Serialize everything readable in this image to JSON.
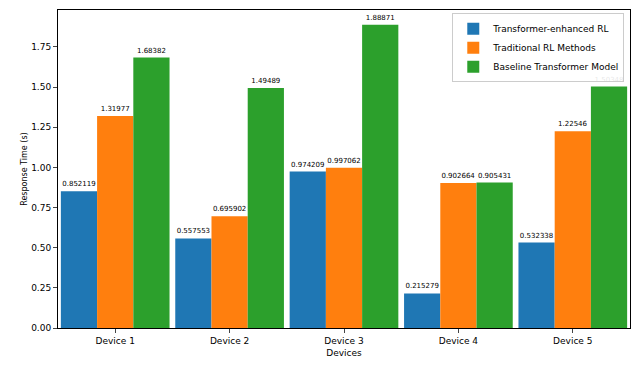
{
  "chart_data": {
    "type": "bar",
    "x_label": "Devices",
    "y_label": "Response Time (s)",
    "categories": [
      "Device 1",
      "Device 2",
      "Device 3",
      "Device 4",
      "Device 5"
    ],
    "series": [
      {
        "name": "Transformer-enhanced RL",
        "color": "#1f77b4",
        "values": [
          0.852119,
          0.557553,
          0.974209,
          0.215279,
          0.532338
        ]
      },
      {
        "name": "Traditional RL Methods",
        "color": "#ff7f0e",
        "values": [
          1.31977,
          0.695902,
          0.997062,
          0.902664,
          1.22546
        ]
      },
      {
        "name": "Baseline Transformer Model",
        "color": "#2ca02c",
        "values": [
          1.68382,
          1.49489,
          1.88871,
          0.905431,
          1.50348
        ]
      }
    ],
    "ylim": [
      0,
      1.98
    ],
    "yticks": [
      {
        "value": 0,
        "label": "0.00"
      },
      {
        "value": 0.25,
        "label": "0.25"
      },
      {
        "value": 0.5,
        "label": "0.50"
      },
      {
        "value": 0.75,
        "label": "0.75"
      },
      {
        "value": 1,
        "label": "1.00"
      },
      {
        "value": 1.25,
        "label": "1.25"
      },
      {
        "value": 1.5,
        "label": "1.50"
      },
      {
        "value": 1.75,
        "label": "1.75"
      }
    ],
    "grid": false,
    "legend": "upper right",
    "data_labels": true
  }
}
